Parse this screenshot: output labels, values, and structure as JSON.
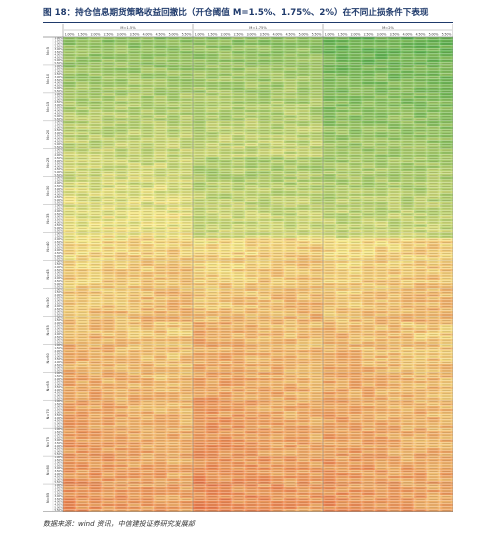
{
  "figure": {
    "title": "图 18：持仓信息期货策略收益回撤比（开仓阈值 M=1.5%、1.75%、2%）在不同止损条件下表现",
    "source": "数据来源：wind 资讯，中信建投证券研究发展部"
  },
  "colors": {
    "low": "#e85a3a",
    "mid": "#f7e98a",
    "high": "#59b04f",
    "rule": "#1f3a6b"
  },
  "table": {
    "panel_headers": [
      "M=1.5%",
      "M=1.75%",
      "M=2%"
    ],
    "col_headers": [
      "1.00%",
      "1.50%",
      "2.00%",
      "2.50%",
      "3.00%",
      "3.50%",
      "4.00%",
      "4.50%",
      "5.00%",
      "5.50%",
      "1.00%",
      "1.50%",
      "2.00%",
      "2.50%",
      "3.00%",
      "3.50%",
      "4.00%",
      "4.50%",
      "5.00%",
      "5.50%",
      "1.00%",
      "1.50%",
      "2.00%",
      "2.50%",
      "3.00%",
      "3.50%",
      "4.00%",
      "4.50%",
      "5.00%",
      "5.50%"
    ],
    "group_labels": [
      "N=5",
      "N=10",
      "N=15",
      "N=20",
      "N=25",
      "N=30",
      "N=35",
      "N=40",
      "N=45",
      "N=50",
      "N=55",
      "N=60",
      "N=65",
      "N=70",
      "N=75",
      "N=80",
      "N=85"
    ],
    "row_labels": [
      "1.00%",
      "1.50%",
      "2.00%",
      "2.50%",
      "3.00%",
      "3.50%",
      "4.00%",
      "4.50%",
      "5.00%",
      "5.50%"
    ]
  }
}
